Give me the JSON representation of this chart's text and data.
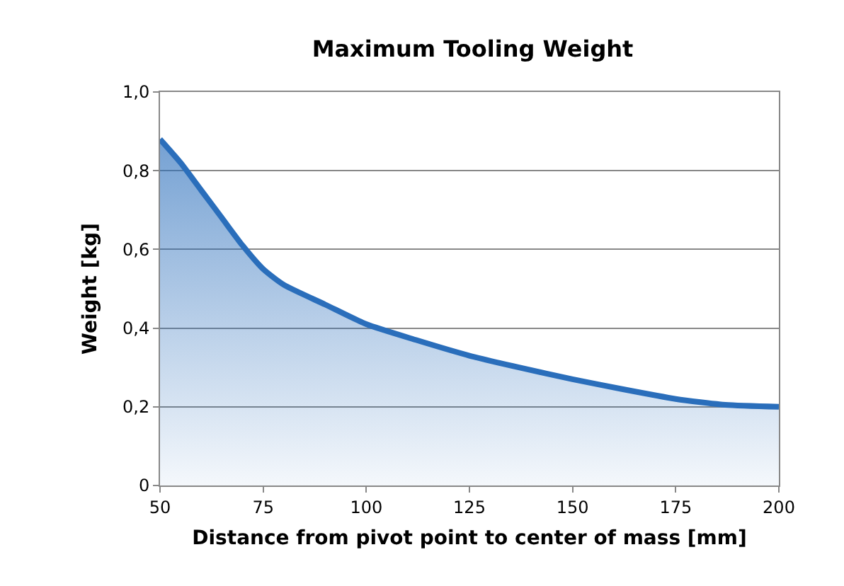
{
  "chart_data": {
    "type": "area",
    "title": "Maximum Tooling Weight",
    "xlabel": "Distance from pivot point to center of mass [mm]",
    "ylabel": "Weight [kg]",
    "x": [
      50,
      55,
      60,
      65,
      70,
      75,
      80,
      90,
      100,
      112,
      125,
      137,
      150,
      162,
      175,
      187,
      200
    ],
    "series": [
      {
        "color": "#2a6ebb",
        "values": [
          0.88,
          0.82,
          0.75,
          0.68,
          0.61,
          0.55,
          0.51,
          0.46,
          0.41,
          0.37,
          0.33,
          0.3,
          0.27,
          0.245,
          0.22,
          0.205,
          0.2
        ]
      }
    ],
    "xlim": [
      50,
      200
    ],
    "xticks": [
      50,
      75,
      100,
      125,
      150,
      175,
      200
    ],
    "ylim": [
      0,
      1
    ],
    "yticks": [
      0,
      {
        "value": 0.2,
        "label": "0,2"
      },
      {
        "value": 0.4,
        "label": "0,4"
      },
      {
        "value": 0.6,
        "label": "0,6"
      },
      {
        "value": 0.8,
        "label": "0,8"
      },
      {
        "value": 1,
        "label": "1,0"
      }
    ],
    "grid": "y",
    "marker": "none",
    "line_style": "solid"
  }
}
